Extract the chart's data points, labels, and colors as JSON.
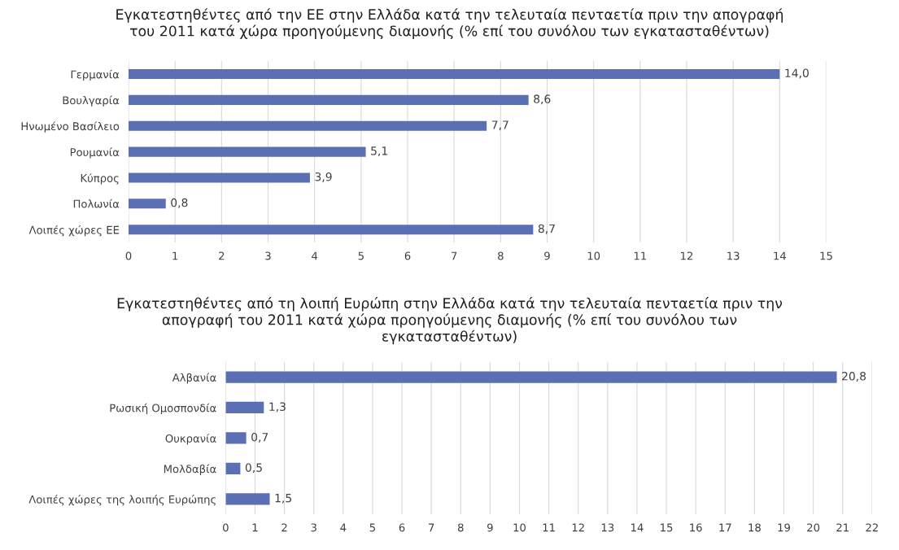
{
  "chart_data": [
    {
      "type": "bar",
      "orientation": "horizontal",
      "title": "Εγκατεστηθέντες από την ΕΕ στην Ελλάδα κατά την τελευταία πενταετία πριν την απογραφή\nτου 2011 κατά χώρα προηγούμενης διαμονής (% επί του συνόλου των εγκατασταθέντων)",
      "categories": [
        "Γερμανία",
        "Βουλγαρία",
        "Ηνωμένο Βασίλειο",
        "Ρουμανία",
        "Κύπρος",
        "Πολωνία",
        "Λοιπές χώρες ΕΕ"
      ],
      "values": [
        14.0,
        8.6,
        7.7,
        5.1,
        3.9,
        0.8,
        8.7
      ],
      "value_labels": [
        "14,0",
        "8,6",
        "7,7",
        "5,1",
        "3,9",
        "0,8",
        "8,7"
      ],
      "color": "#5a6fb4",
      "xlim": [
        0,
        15
      ],
      "xticks": [
        0,
        1,
        2,
        3,
        4,
        5,
        6,
        7,
        8,
        9,
        10,
        11,
        12,
        13,
        14,
        15
      ],
      "grid": "x"
    },
    {
      "type": "bar",
      "orientation": "horizontal",
      "title": "Εγκατεστηθέντες από τη λοιπή Ευρώπη στην Ελλάδα κατά την τελευταία πενταετία πριν την\nαπογραφή του 2011 κατά χώρα προηγούμενης διαμονής (% επί του συνόλου των\nεγκατασταθέντων)",
      "categories": [
        "Αλβανία",
        "Ρωσική Ομοσπονδία",
        "Ουκρανία",
        "Μολδαβία",
        "Λοιπές χώρες της λοιπής Ευρώπης"
      ],
      "values": [
        20.8,
        1.3,
        0.7,
        0.5,
        1.5
      ],
      "value_labels": [
        "20,8",
        "1,3",
        "0,7",
        "0,5",
        "1,5"
      ],
      "color": "#5a6fb4",
      "xlim": [
        0,
        22
      ],
      "xticks": [
        0,
        1,
        2,
        3,
        4,
        5,
        6,
        7,
        8,
        9,
        10,
        11,
        12,
        13,
        14,
        15,
        16,
        17,
        18,
        19,
        20,
        21,
        22
      ],
      "grid": "x"
    }
  ]
}
